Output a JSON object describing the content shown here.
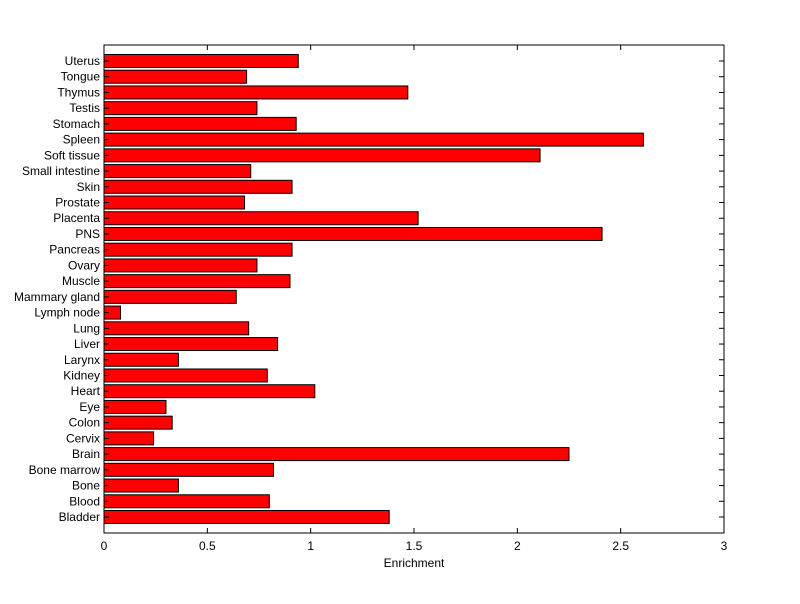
{
  "chart_data": {
    "type": "bar",
    "orientation": "horizontal",
    "title": "",
    "xlabel": "Enrichment",
    "ylabel": "",
    "xlim": [
      0,
      3
    ],
    "xticks": [
      "0",
      "0.5",
      "1",
      "1.5",
      "2",
      "2.5",
      "3"
    ],
    "grid": false,
    "bar_color": "#ff0000",
    "edge_color": "#000000",
    "categories": [
      "Uterus",
      "Tongue",
      "Thymus",
      "Testis",
      "Stomach",
      "Spleen",
      "Soft tissue",
      "Small intestine",
      "Skin",
      "Prostate",
      "Placenta",
      "PNS",
      "Pancreas",
      "Ovary",
      "Muscle",
      "Mammary gland",
      "Lymph node",
      "Lung",
      "Liver",
      "Larynx",
      "Kidney",
      "Heart",
      "Eye",
      "Colon",
      "Cervix",
      "Brain",
      "Bone marrow",
      "Bone",
      "Blood",
      "Bladder"
    ],
    "values": [
      0.94,
      0.69,
      1.47,
      0.74,
      0.93,
      2.61,
      2.11,
      0.71,
      0.91,
      0.68,
      1.52,
      2.41,
      0.91,
      0.74,
      0.9,
      0.64,
      0.08,
      0.7,
      0.84,
      0.36,
      0.79,
      1.02,
      0.3,
      0.33,
      0.24,
      2.25,
      0.82,
      0.36,
      0.8,
      1.38
    ]
  }
}
